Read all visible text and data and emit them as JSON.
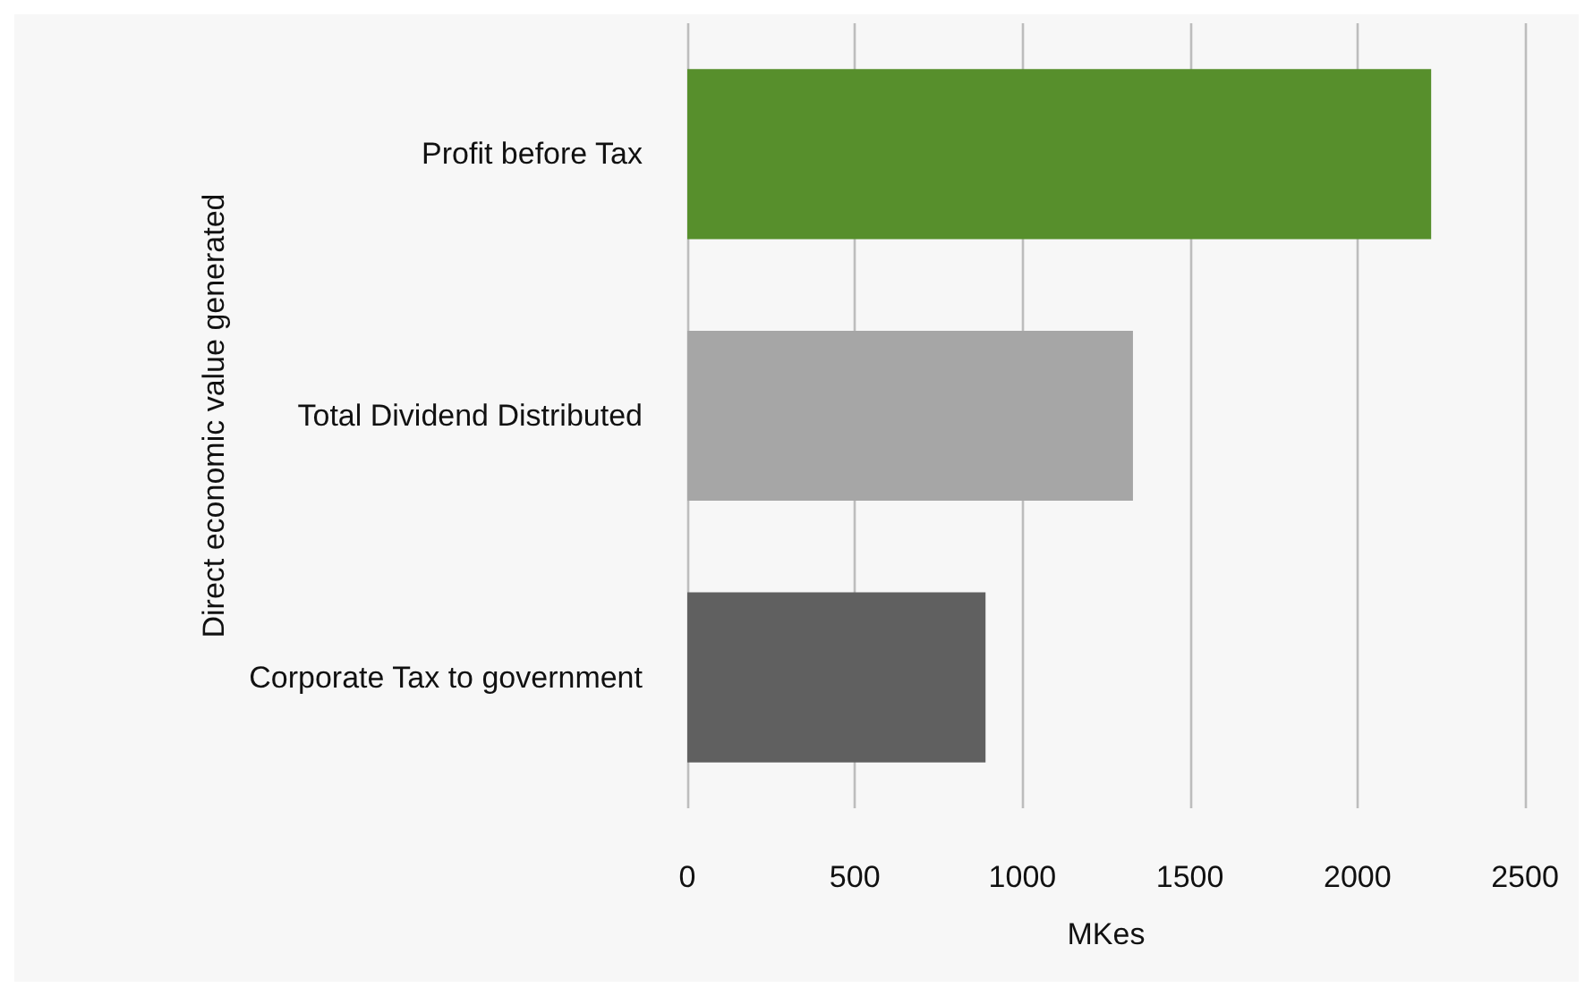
{
  "chart_data": {
    "type": "bar",
    "orientation": "horizontal",
    "categories": [
      "Profit before Tax",
      "Total Dividend Distributed",
      "Corporate Tax to government"
    ],
    "values": [
      2220,
      1330,
      890
    ],
    "colors": [
      "#578f2c",
      "#a6a6a6",
      "#606060"
    ],
    "xlabel": "MKes",
    "ylabel": "Direct economic value generated",
    "xlim": [
      0,
      2500
    ],
    "xticks": [
      0,
      500,
      1000,
      1500,
      2000,
      2500
    ],
    "grid": "x"
  }
}
